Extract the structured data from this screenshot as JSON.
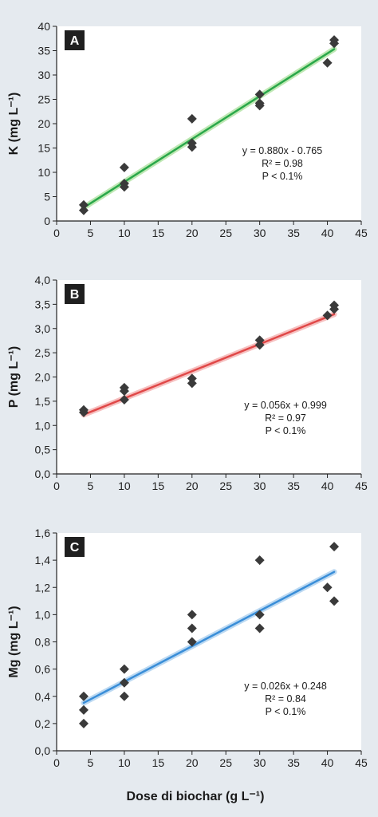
{
  "figure": {
    "xlabel": "Dose di biochar (g L⁻¹)"
  },
  "chart_data": [
    {
      "type": "scatter",
      "panel_label": "A",
      "ylabel": "K (mg L⁻¹)",
      "xlabel": "Dose di biochar (g L⁻¹)",
      "xlim": [
        0,
        45
      ],
      "ylim": [
        0,
        40
      ],
      "x_ticks": [
        "0",
        "5",
        "10",
        "15",
        "20",
        "25",
        "30",
        "35",
        "40",
        "45"
      ],
      "y_ticks": [
        "0",
        "5",
        "10",
        "15",
        "20",
        "25",
        "30",
        "35",
        "40"
      ],
      "grid": false,
      "points": [
        {
          "x": 4,
          "y": 3.3
        },
        {
          "x": 4,
          "y": 2.2
        },
        {
          "x": 10,
          "y": 11
        },
        {
          "x": 10,
          "y": 7.7
        },
        {
          "x": 10,
          "y": 7
        },
        {
          "x": 20,
          "y": 21
        },
        {
          "x": 20,
          "y": 16
        },
        {
          "x": 20,
          "y": 15.2
        },
        {
          "x": 30,
          "y": 26
        },
        {
          "x": 30,
          "y": 24.2
        },
        {
          "x": 30,
          "y": 23.7
        },
        {
          "x": 40,
          "y": 32.5
        },
        {
          "x": 41,
          "y": 37.2
        },
        {
          "x": 41,
          "y": 36.5
        }
      ],
      "trendline": {
        "slope": 0.88,
        "intercept": -0.765,
        "x_range": [
          4,
          41
        ],
        "color": "#2aa84a",
        "glow": "#bfe8b4"
      },
      "annotations": [
        "y = 0.880x - 0.765",
        "R² = 0.98",
        "P < 0.1%"
      ]
    },
    {
      "type": "scatter",
      "panel_label": "B",
      "ylabel": "P (mg L⁻¹)",
      "xlabel": "Dose di biochar (g L⁻¹)",
      "xlim": [
        0,
        45
      ],
      "ylim": [
        0,
        4
      ],
      "x_ticks": [
        "0",
        "5",
        "10",
        "15",
        "20",
        "25",
        "30",
        "35",
        "40",
        "45"
      ],
      "y_ticks": [
        "0,0",
        "0,5",
        "1,0",
        "1,5",
        "2,0",
        "2,5",
        "3,0",
        "3,5",
        "4,0"
      ],
      "grid": false,
      "points": [
        {
          "x": 4,
          "y": 1.32
        },
        {
          "x": 4,
          "y": 1.27
        },
        {
          "x": 10,
          "y": 1.78
        },
        {
          "x": 10,
          "y": 1.71
        },
        {
          "x": 10,
          "y": 1.53
        },
        {
          "x": 20,
          "y": 1.97
        },
        {
          "x": 20,
          "y": 1.87
        },
        {
          "x": 30,
          "y": 2.76
        },
        {
          "x": 30,
          "y": 2.66
        },
        {
          "x": 40,
          "y": 3.27
        },
        {
          "x": 41,
          "y": 3.48
        },
        {
          "x": 41,
          "y": 3.4
        }
      ],
      "trendline": {
        "slope": 0.056,
        "intercept": 0.999,
        "x_range": [
          4,
          41
        ],
        "color": "#e04848",
        "glow": "#f6c0c0"
      },
      "annotations": [
        "y = 0.056x + 0.999",
        "R² = 0.97",
        "P < 0.1%"
      ]
    },
    {
      "type": "scatter",
      "panel_label": "C",
      "ylabel": "Mg (mg L⁻¹)",
      "xlabel": "Dose di biochar (g L⁻¹)",
      "xlim": [
        0,
        45
      ],
      "ylim": [
        0,
        1.6
      ],
      "x_ticks": [
        "0",
        "5",
        "10",
        "15",
        "20",
        "25",
        "30",
        "35",
        "40",
        "45"
      ],
      "y_ticks": [
        "0,0",
        "0,2",
        "0,4",
        "0,6",
        "0,8",
        "1,0",
        "1,2",
        "1,4",
        "1,6"
      ],
      "grid": false,
      "points": [
        {
          "x": 4,
          "y": 0.4
        },
        {
          "x": 4,
          "y": 0.3
        },
        {
          "x": 4,
          "y": 0.2
        },
        {
          "x": 10,
          "y": 0.6
        },
        {
          "x": 10,
          "y": 0.5
        },
        {
          "x": 10,
          "y": 0.4
        },
        {
          "x": 20,
          "y": 1.0
        },
        {
          "x": 20,
          "y": 0.9
        },
        {
          "x": 20,
          "y": 0.8
        },
        {
          "x": 30,
          "y": 1.4
        },
        {
          "x": 30,
          "y": 1.0
        },
        {
          "x": 30,
          "y": 0.9
        },
        {
          "x": 40,
          "y": 1.2
        },
        {
          "x": 41,
          "y": 1.5
        },
        {
          "x": 41,
          "y": 1.1
        }
      ],
      "trendline": {
        "slope": 0.026,
        "intercept": 0.248,
        "x_range": [
          4,
          41
        ],
        "color": "#3a8ed8",
        "glow": "#bcd9f2"
      },
      "annotations": [
        "y = 0.026x + 0.248",
        "R² = 0.84",
        "P < 0.1%"
      ]
    }
  ]
}
